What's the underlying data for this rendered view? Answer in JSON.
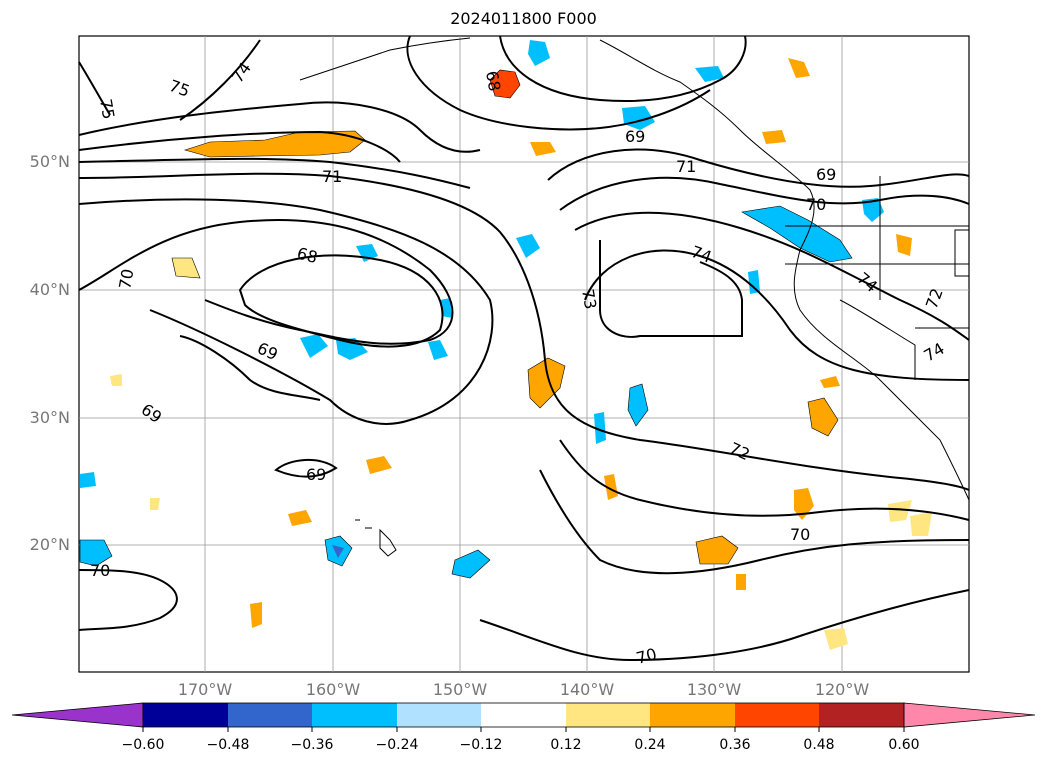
{
  "title": "2024011800 F000",
  "lat_labels": [
    "50°N",
    "40°N",
    "30°N",
    "20°N"
  ],
  "lon_labels": [
    "170°W",
    "160°W",
    "150°W",
    "140°W",
    "130°W",
    "120°W"
  ],
  "contour_labels": [
    "75",
    "74",
    "73",
    "70",
    "69",
    "68",
    "71",
    "74",
    "73",
    "72",
    "70",
    "69",
    "70",
    "71",
    "72",
    "74",
    "70"
  ],
  "colorbar": {
    "ticks": [
      "−0.60",
      "−0.48",
      "−0.36",
      "−0.24",
      "−0.12",
      "0.12",
      "0.24",
      "0.36",
      "0.48",
      "0.60"
    ],
    "colors": [
      "#9933cc",
      "#000099",
      "#3366cc",
      "#00bfff",
      "#b0e2ff",
      "#ffffff",
      "#ffe680",
      "#ffa500",
      "#ff4500",
      "#b22222",
      "#ff88aa"
    ]
  }
}
